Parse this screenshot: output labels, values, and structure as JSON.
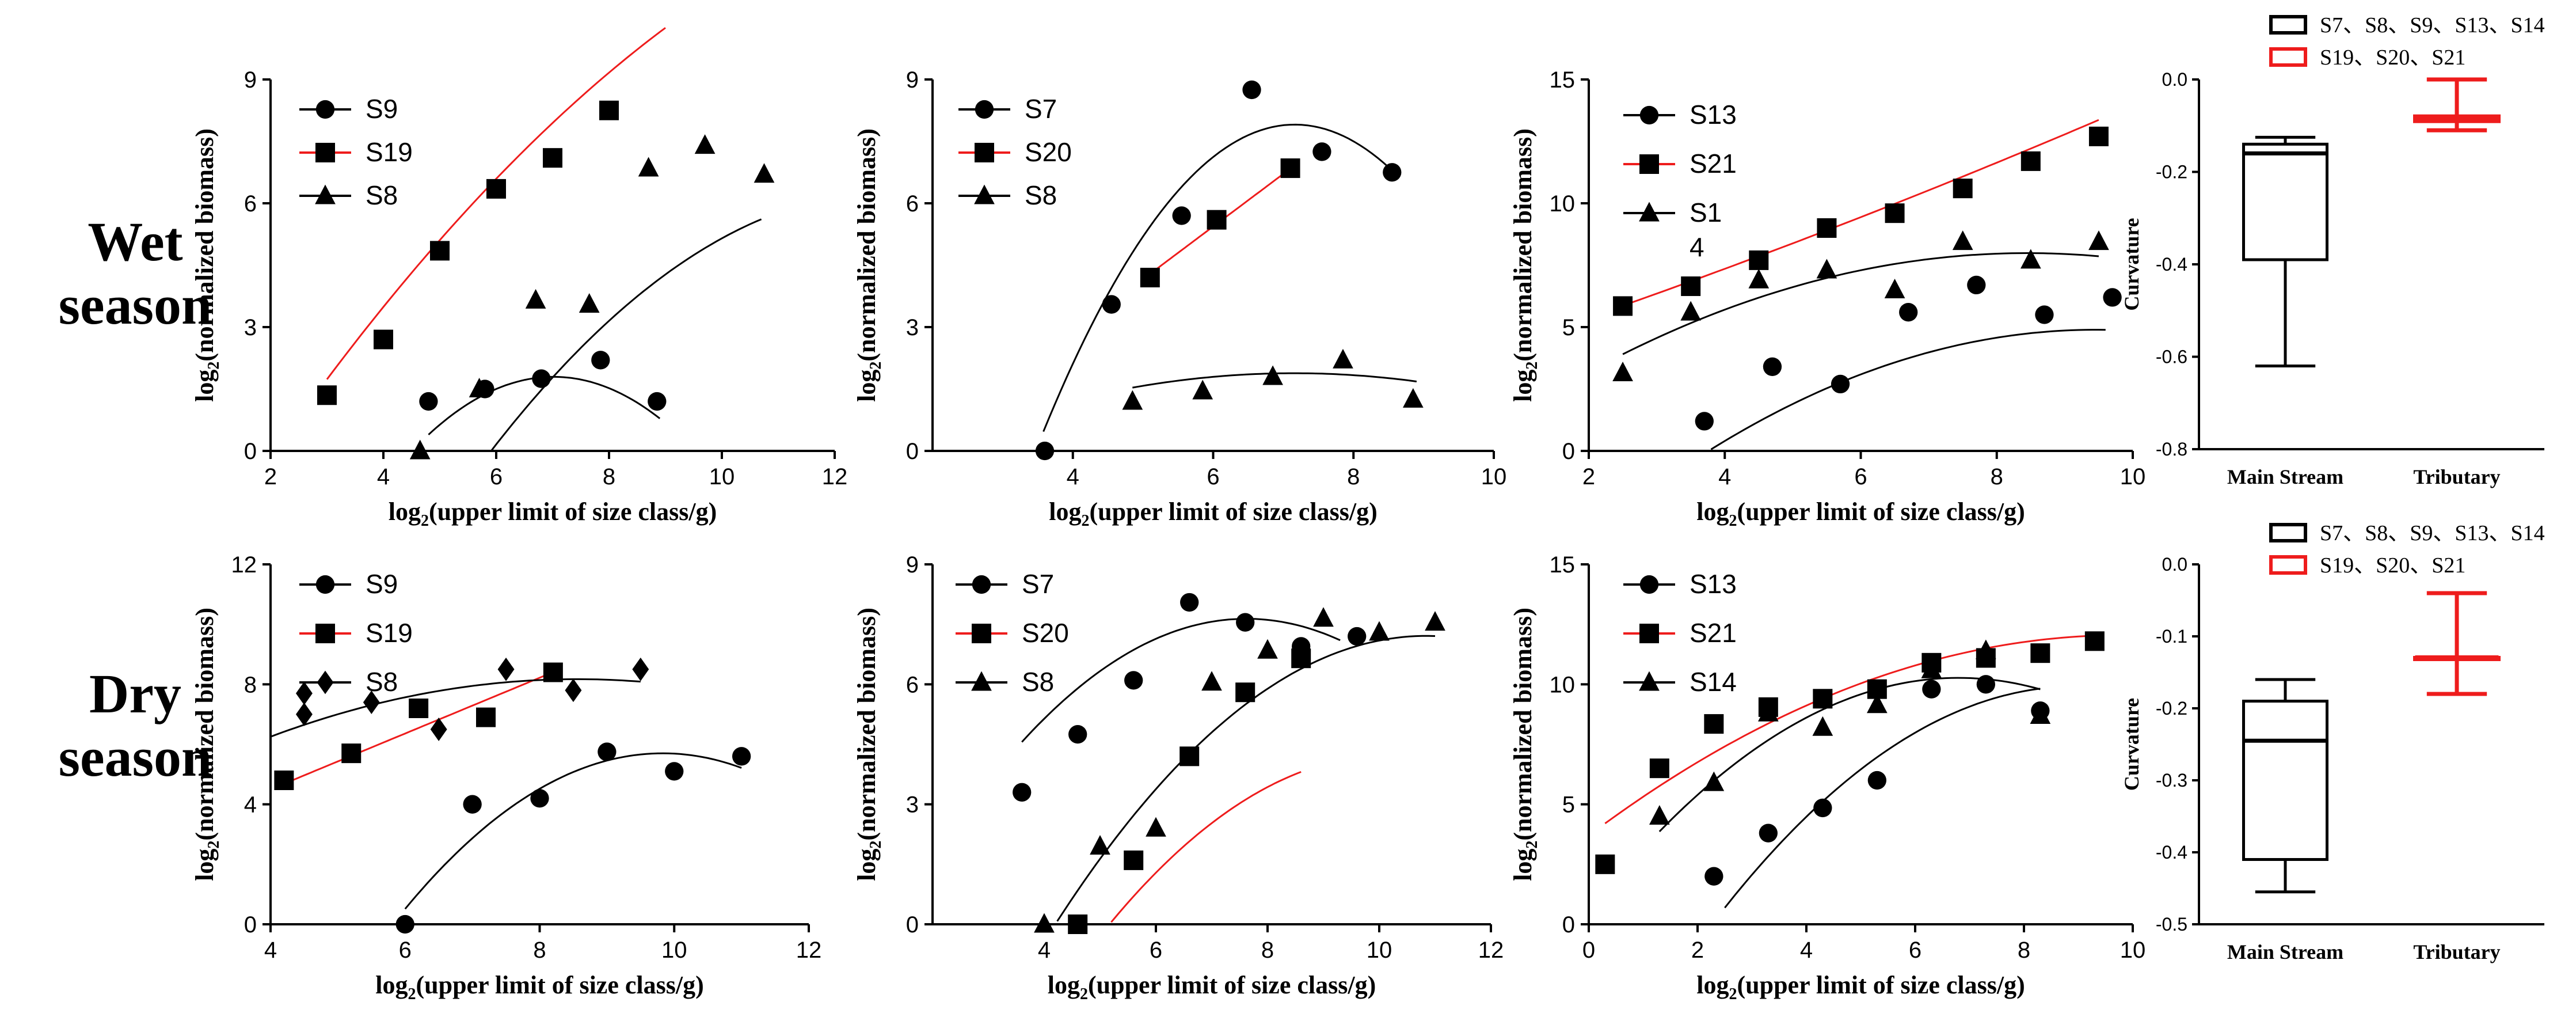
{
  "row_labels": [
    [
      "Wet",
      "season"
    ],
    [
      "Dry",
      "season"
    ]
  ],
  "colors": {
    "black": "#000000",
    "red": "#ee1c1c"
  },
  "chart_data": [
    {
      "id": "wet-1",
      "type": "scatter",
      "xlabel": "log2(upper limit of size class/g)",
      "ylabel": "log2(normalized biomass)",
      "xlim": [
        2,
        12
      ],
      "ylim": [
        0,
        9
      ],
      "xticks": [
        2,
        4,
        6,
        8,
        10,
        12
      ],
      "yticks": [
        0,
        3,
        6,
        9
      ],
      "series": [
        {
          "name": "S9",
          "marker": "circle",
          "color": "black",
          "points": [
            [
              4.8,
              1.2
            ],
            [
              5.8,
              1.5
            ],
            [
              6.8,
              1.75
            ],
            [
              7.85,
              2.2
            ],
            [
              8.85,
              1.2
            ]
          ],
          "fit": {
            "coef": [
              -12.24,
              4.0,
              -0.285
            ],
            "x": [
              4.8,
              8.9
            ]
          }
        },
        {
          "name": "S19",
          "marker": "square",
          "color": "red",
          "points": [
            [
              3.0,
              1.35
            ],
            [
              4.0,
              2.7
            ],
            [
              5.0,
              4.85
            ],
            [
              6.0,
              6.35
            ],
            [
              7.0,
              7.1
            ],
            [
              8.0,
              8.25
            ]
          ],
          "fit": {
            "coef": [
              -4.325,
              2.22,
              -0.0667
            ],
            "x": [
              3.0,
              9.0
            ]
          }
        },
        {
          "name": "S8",
          "marker": "triangle",
          "color": "black",
          "points": [
            [
              4.65,
              0.0
            ],
            [
              5.7,
              1.5
            ],
            [
              6.7,
              3.65
            ],
            [
              7.65,
              3.55
            ],
            [
              8.7,
              6.85
            ],
            [
              9.7,
              7.4
            ],
            [
              10.75,
              6.7
            ]
          ],
          "fit": {
            "coef": [
              -14.8,
              3.24,
              -0.1245
            ],
            "x": [
              4.72,
              10.7
            ]
          }
        }
      ]
    },
    {
      "id": "wet-2",
      "type": "scatter",
      "xlabel": "log2(upper limit of size class/g)",
      "ylabel": "log2(normalized biomass)",
      "xlim": [
        2,
        10
      ],
      "ylim": [
        0,
        9
      ],
      "xticks": [
        4,
        6,
        8,
        10
      ],
      "yticks": [
        0,
        3,
        6,
        9
      ],
      "series": [
        {
          "name": "S7",
          "marker": "circle",
          "color": "black",
          "points": [
            [
              3.6,
              0.0
            ],
            [
              4.55,
              3.55
            ],
            [
              5.55,
              5.7
            ],
            [
              6.55,
              8.75
            ],
            [
              7.55,
              7.25
            ],
            [
              8.55,
              6.75
            ]
          ],
          "fit": {
            "coef": [
              -21.81,
              8.296,
              -0.579
            ],
            "x": [
              3.58,
              8.6
            ]
          }
        },
        {
          "name": "S20",
          "marker": "square",
          "color": "red",
          "points": [
            [
              5.1,
              4.2
            ],
            [
              6.05,
              5.6
            ],
            [
              7.1,
              6.85
            ]
          ],
          "fit": {
            "coef": [
              -2.21,
              1.2745,
              0.0
            ],
            "x": [
              5.1,
              7.1
            ]
          }
        },
        {
          "name": "S8",
          "marker": "triangle",
          "color": "black",
          "points": [
            [
              4.85,
              1.2
            ],
            [
              5.85,
              1.45
            ],
            [
              6.85,
              1.8
            ],
            [
              7.85,
              2.2
            ],
            [
              8.85,
              1.25
            ]
          ],
          "fit": {
            "coef": [
              -1.48,
              0.94,
              -0.0657
            ],
            "x": [
              4.85,
              8.9
            ]
          }
        }
      ]
    },
    {
      "id": "wet-3",
      "type": "scatter",
      "xlabel": "log2(upper limit of size class/g)",
      "ylabel": "log2(normalized biomass)",
      "xlim": [
        2,
        10
      ],
      "ylim": [
        0,
        15
      ],
      "xticks": [
        2,
        4,
        6,
        8,
        10
      ],
      "yticks": [
        0,
        5,
        10,
        15
      ],
      "series": [
        {
          "name": "S13",
          "marker": "circle",
          "color": "black",
          "points": [
            [
              3.7,
              1.2
            ],
            [
              4.7,
              3.4
            ],
            [
              5.7,
              2.7
            ],
            [
              6.7,
              5.6
            ],
            [
              7.7,
              6.7
            ],
            [
              8.7,
              5.5
            ],
            [
              9.7,
              6.2
            ]
          ],
          "fit": {
            "coef": [
              -8.59,
              2.85,
              -0.1506
            ],
            "x": [
              3.7,
              9.6
            ]
          }
        },
        {
          "name": "S21",
          "marker": "square",
          "color": "red",
          "points": [
            [
              2.5,
              5.85
            ],
            [
              3.5,
              6.65
            ],
            [
              4.5,
              7.7
            ],
            [
              5.5,
              9.0
            ],
            [
              6.5,
              9.6
            ],
            [
              7.5,
              10.6
            ],
            [
              8.5,
              11.7
            ],
            [
              9.5,
              12.7
            ]
          ],
          "fit": {
            "coef": [
              3.525,
              0.9,
              0.0143
            ],
            "x": [
              2.5,
              9.5
            ]
          }
        },
        {
          "name": "S14",
          "legend_lines": [
            "S1",
            "4"
          ],
          "marker": "triangle",
          "color": "black",
          "points": [
            [
              2.5,
              3.15
            ],
            [
              3.5,
              5.6
            ],
            [
              4.5,
              6.9
            ],
            [
              5.5,
              7.3
            ],
            [
              6.5,
              6.5
            ],
            [
              7.5,
              8.45
            ],
            [
              8.5,
              7.7
            ],
            [
              9.5,
              8.45
            ]
          ],
          "fit": {
            "coef": [
              -0.25,
              1.95,
              -0.1154
            ],
            "x": [
              2.5,
              9.5
            ]
          }
        }
      ]
    },
    {
      "id": "dry-1",
      "type": "scatter",
      "xlabel": "log2(upper limit of size class/g)",
      "ylabel": "log2(normalized biomass)",
      "xlim": [
        4,
        12
      ],
      "ylim": [
        0,
        12
      ],
      "xticks": [
        4,
        6,
        8,
        10,
        12
      ],
      "yticks": [
        0,
        4,
        8,
        12
      ],
      "series": [
        {
          "name": "S9",
          "marker": "circle",
          "color": "black",
          "points": [
            [
              6.0,
              0.0
            ],
            [
              7.0,
              4.0
            ],
            [
              8.0,
              4.2
            ],
            [
              9.0,
              5.75
            ],
            [
              10.0,
              5.1
            ],
            [
              11.0,
              5.6
            ]
          ],
          "fit": {
            "coef": [
              -28.5,
              6.96,
              -0.3541
            ],
            "x": [
              6.0,
              11.0
            ]
          }
        },
        {
          "name": "S19",
          "marker": "square",
          "color": "red",
          "points": [
            [
              4.2,
              4.8
            ],
            [
              5.2,
              5.7
            ],
            [
              6.2,
              7.2
            ],
            [
              7.2,
              6.9
            ],
            [
              8.2,
              8.4
            ]
          ],
          "fit": {
            "coef": [
              0.78,
              0.93,
              0.0
            ],
            "x": [
              4.2,
              8.2
            ]
          }
        },
        {
          "name": "S8",
          "marker": "diamond",
          "color": "black",
          "points": [
            [
              4.5,
              7.0
            ],
            [
              4.5,
              7.7
            ],
            [
              5.5,
              7.4
            ],
            [
              6.5,
              6.5
            ],
            [
              7.5,
              8.5
            ],
            [
              8.5,
              7.8
            ],
            [
              9.5,
              8.5
            ]
          ],
          "fit": {
            "coef": [
              1.41,
              1.58,
              -0.0923
            ],
            "x": [
              4.0,
              9.5
            ]
          }
        }
      ]
    },
    {
      "id": "dry-2",
      "type": "scatter",
      "xlabel": "log2(upper limit of size class/g)",
      "ylabel": "log2(normalized biomass)",
      "xlim": [
        2,
        12
      ],
      "ylim": [
        0,
        9
      ],
      "xticks": [
        4,
        6,
        8,
        10,
        12
      ],
      "yticks": [
        0,
        3,
        6,
        9
      ],
      "series": [
        {
          "name": "S7",
          "marker": "circle",
          "color": "black",
          "points": [
            [
              3.6,
              3.3
            ],
            [
              4.6,
              4.75
            ],
            [
              5.6,
              6.1
            ],
            [
              6.6,
              8.05
            ],
            [
              7.6,
              7.55
            ],
            [
              8.6,
              6.95
            ],
            [
              9.6,
              7.2
            ]
          ],
          "fit": {
            "coef": [
              -3.43,
              2.905,
              -0.1906
            ],
            "x": [
              3.6,
              9.3
            ]
          }
        },
        {
          "name": "S20",
          "marker": "square",
          "color": "red",
          "points": [
            [
              4.6,
              0.0
            ],
            [
              5.6,
              1.6
            ],
            [
              6.6,
              4.2
            ],
            [
              7.6,
              5.8
            ],
            [
              8.6,
              6.65
            ]
          ],
          "fit": {
            "coef": [
              -13.26,
              3.44,
              -0.1692
            ],
            "x": [
              4.6,
              8.6
            ]
          }
        },
        {
          "name": "S8",
          "marker": "triangle",
          "color": "black",
          "points": [
            [
              4.0,
              0.0
            ],
            [
              5.0,
              1.95
            ],
            [
              6.0,
              2.4
            ],
            [
              7.0,
              6.05
            ],
            [
              8.0,
              6.85
            ],
            [
              9.0,
              7.65
            ],
            [
              10.0,
              7.3
            ],
            [
              11.0,
              7.55
            ]
          ],
          "fit": {
            "coef": [
              -11.985,
              3.54,
              -0.1632
            ],
            "x": [
              4.0,
              11.0
            ]
          }
        }
      ]
    },
    {
      "id": "dry-3",
      "type": "scatter",
      "xlabel": "log2(upper limit of size class/g)",
      "ylabel": "log2(normalized biomass)",
      "xlim": [
        0,
        10
      ],
      "ylim": [
        0,
        15
      ],
      "xticks": [
        0,
        2,
        4,
        6,
        8,
        10
      ],
      "yticks": [
        0,
        5,
        10,
        15
      ],
      "series": [
        {
          "name": "S13",
          "marker": "circle",
          "color": "black",
          "points": [
            [
              2.3,
              2.0
            ],
            [
              3.3,
              3.8
            ],
            [
              4.3,
              4.85
            ],
            [
              5.3,
              6.0
            ],
            [
              6.3,
              9.8
            ],
            [
              7.3,
              10.0
            ],
            [
              8.3,
              8.9
            ]
          ],
          "fit": {
            "coef": [
              -7.85,
              3.97,
              -0.2218
            ],
            "x": [
              2.5,
              8.3
            ]
          }
        },
        {
          "name": "S21",
          "marker": "square",
          "color": "red",
          "points": [
            [
              0.3,
              2.5
            ],
            [
              1.3,
              6.5
            ],
            [
              2.3,
              8.35
            ],
            [
              3.3,
              9.05
            ],
            [
              4.3,
              9.4
            ],
            [
              5.3,
              9.8
            ],
            [
              6.3,
              10.9
            ],
            [
              7.3,
              11.1
            ],
            [
              8.3,
              11.3
            ],
            [
              9.3,
              11.8
            ]
          ],
          "fit": {
            "coef": [
              3.7,
              1.7,
              -0.0865
            ],
            "x": [
              0.3,
              9.3
            ]
          }
        },
        {
          "name": "S14",
          "marker": "triangle",
          "color": "black",
          "points": [
            [
              1.3,
              4.5
            ],
            [
              2.3,
              5.9
            ],
            [
              3.3,
              8.8
            ],
            [
              4.3,
              8.2
            ],
            [
              5.3,
              9.15
            ],
            [
              6.3,
              10.6
            ],
            [
              7.3,
              11.4
            ],
            [
              8.3,
              8.7
            ]
          ],
          "fit": {
            "coef": [
              0.48,
              2.88,
              -0.2118
            ],
            "x": [
              1.3,
              8.3
            ]
          }
        }
      ]
    }
  ],
  "box_charts": [
    {
      "id": "wet-box",
      "type": "box",
      "ylabel": "Curvature",
      "ylim": [
        -0.8,
        0.0
      ],
      "yticks": [
        0.0,
        -0.2,
        -0.4,
        -0.6,
        -0.8
      ],
      "tick_labels": [
        "0.0",
        "-0.2",
        "-0.4",
        "-0.6",
        "-0.8"
      ],
      "categories": [
        "Main Stream",
        "Tributary"
      ],
      "legend": [
        {
          "label": "S7、S8、S9、S13、S14",
          "color": "black"
        },
        {
          "label": "S19、S20、S21",
          "color": "red"
        }
      ],
      "boxes": [
        {
          "category": "Main Stream",
          "color": "black",
          "min": -0.62,
          "q1": -0.39,
          "median": -0.16,
          "q3": -0.14,
          "max": -0.125
        },
        {
          "category": "Tributary",
          "color": "red",
          "min": -0.11,
          "q1": -0.09,
          "median": -0.085,
          "q3": -0.08,
          "max": 0.0
        }
      ]
    },
    {
      "id": "dry-box",
      "type": "box",
      "ylabel": "Curvature",
      "ylim": [
        -0.5,
        0.0
      ],
      "yticks": [
        0.0,
        -0.1,
        -0.2,
        -0.3,
        -0.4,
        -0.5
      ],
      "tick_labels": [
        "0.0",
        "-0.1",
        "-0.2",
        "-0.3",
        "-0.4",
        "-0.5"
      ],
      "categories": [
        "Main Stream",
        "Tributary"
      ],
      "legend": [
        {
          "label": "S7、S8、S9、S13、S14",
          "color": "black"
        },
        {
          "label": "S19、S20、S21",
          "color": "red"
        }
      ],
      "boxes": [
        {
          "category": "Main Stream",
          "color": "black",
          "min": -0.455,
          "q1": -0.41,
          "median": -0.245,
          "q3": -0.19,
          "max": -0.16
        },
        {
          "category": "Tributary",
          "color": "red",
          "min": -0.18,
          "q1": -0.13,
          "median": -0.13,
          "q3": -0.13,
          "max": -0.04
        }
      ]
    }
  ]
}
